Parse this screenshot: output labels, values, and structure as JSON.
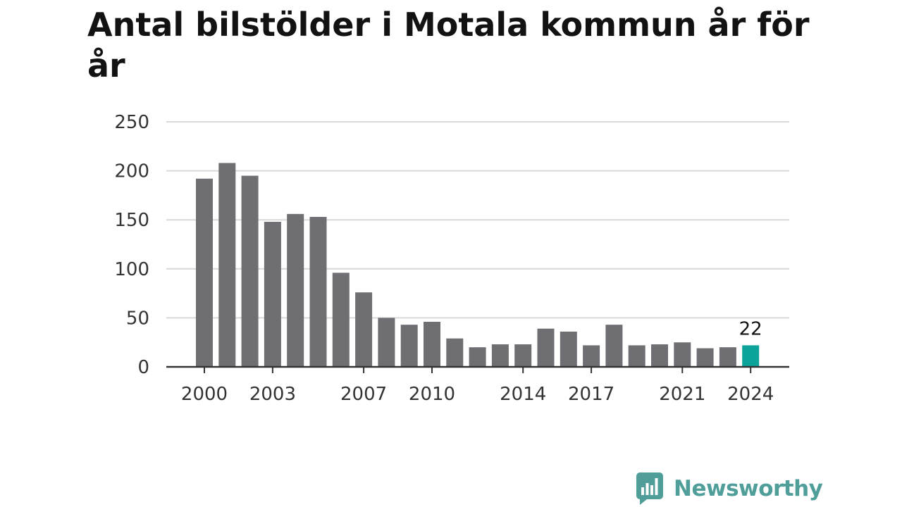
{
  "chart_data": {
    "type": "bar",
    "title": "Antal bilstölder i Motala kommun år för år",
    "xlabel": "",
    "ylabel": "",
    "categories": [
      "2000",
      "2001",
      "2002",
      "2003",
      "2004",
      "2005",
      "2006",
      "2007",
      "2008",
      "2009",
      "2010",
      "2011",
      "2012",
      "2013",
      "2014",
      "2015",
      "2016",
      "2017",
      "2018",
      "2019",
      "2020",
      "2021",
      "2022",
      "2023",
      "2024"
    ],
    "values": [
      192,
      208,
      195,
      148,
      156,
      153,
      96,
      76,
      50,
      43,
      46,
      29,
      20,
      23,
      23,
      39,
      36,
      22,
      43,
      22,
      23,
      25,
      19,
      20,
      22
    ],
    "ylim": [
      0,
      250
    ],
    "yticks": [
      0,
      50,
      100,
      150,
      200,
      250
    ],
    "xtick_labels": [
      "2000",
      "2003",
      "2007",
      "2010",
      "2014",
      "2017",
      "2021",
      "2024"
    ],
    "highlight": {
      "category": "2024",
      "label": "22"
    },
    "grid": true,
    "colors": {
      "bar": "#6f6e73",
      "highlight": "#0ca39a",
      "grid": "#d9d9d9",
      "axis": "#333333",
      "text": "#333333"
    }
  },
  "brand": {
    "name": "Newsworthy",
    "icon": "newsworthy-logo-icon",
    "color": "#4f9e99"
  }
}
